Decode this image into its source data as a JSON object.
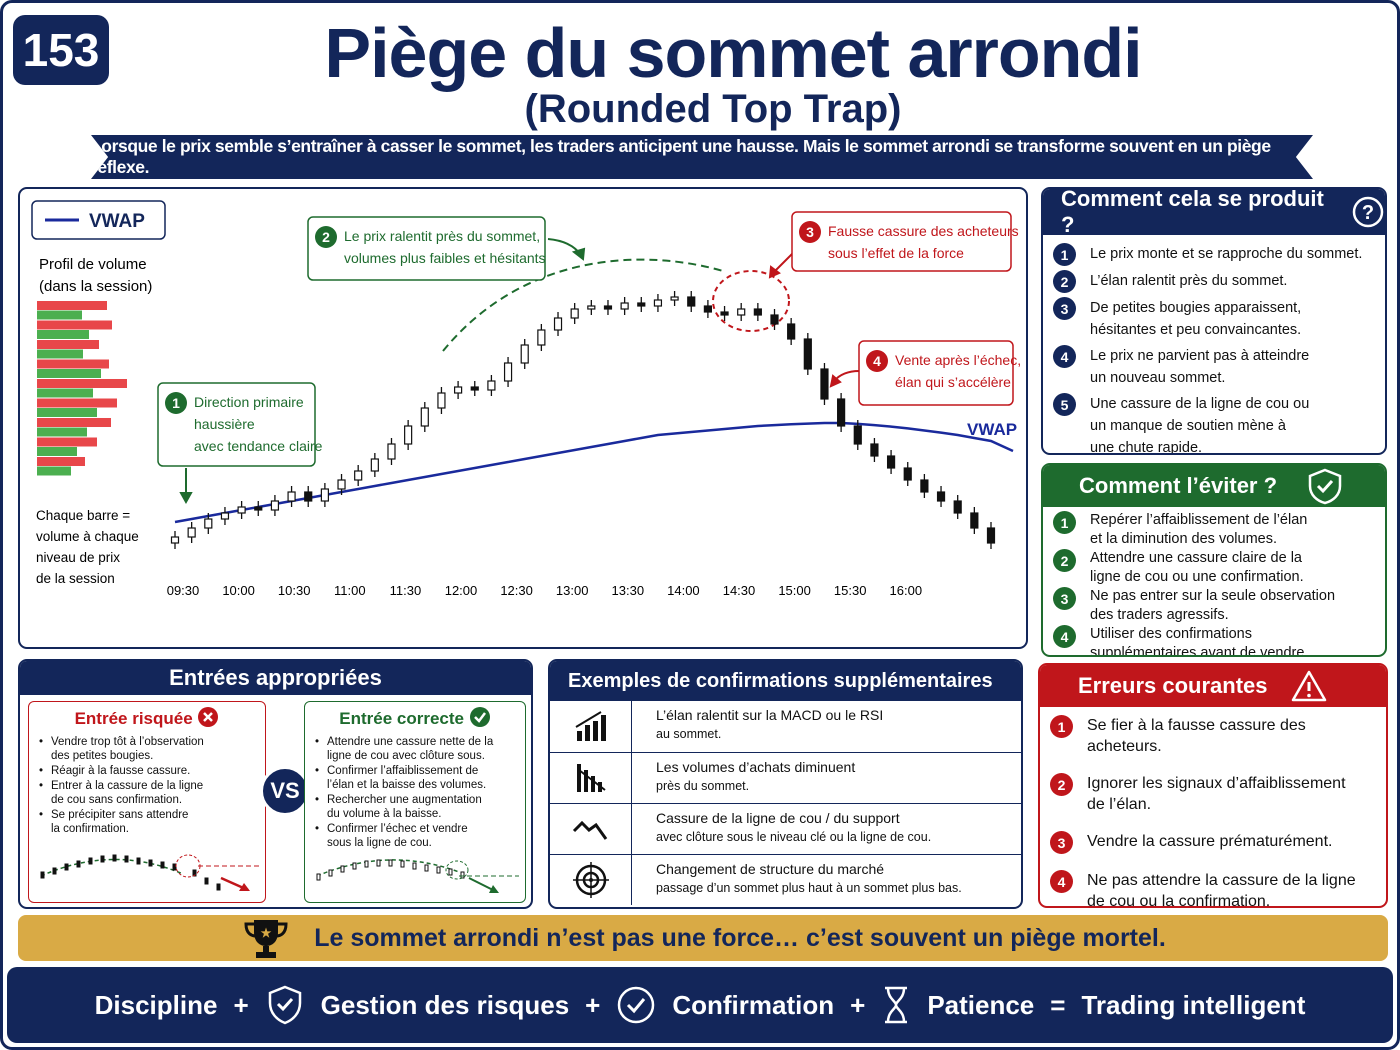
{
  "header": {
    "badge": 153,
    "title": "Piège du sommet arrondi",
    "subtitle": "(Rounded Top Trap)",
    "banner": "Lorsque le prix semble s’entraîner à casser le sommet, les traders anticipent une hausse. Mais le sommet arrondi se transforme souvent en un piège réflexe."
  },
  "chart_data": {
    "type": "candlestick",
    "legend": "VWAP",
    "vwap_label": "VWAP",
    "profile_title": [
      "Profil de volume",
      "(dans la session)"
    ],
    "profile_note": [
      "Chaque barre =",
      "volume à chaque",
      "niveau de prix",
      "de la session"
    ],
    "volume_profile": {
      "sell": [
        70,
        75,
        62,
        72,
        90,
        80,
        74,
        60,
        48
      ],
      "buy": [
        45,
        52,
        46,
        64,
        56,
        60,
        50,
        40,
        34
      ],
      "sell_color": "#e8474a",
      "buy_color": "#4caf50"
    },
    "categories": [
      "09:30",
      "10:00",
      "10:30",
      "11:00",
      "11:30",
      "12:00",
      "12:30",
      "13:00",
      "13:30",
      "14:00",
      "14:30",
      "15:00",
      "15:30",
      "16:00"
    ],
    "candles": [
      [
        10,
        14,
        8,
        12
      ],
      [
        12,
        17,
        10,
        15
      ],
      [
        15,
        20,
        13,
        18
      ],
      [
        18,
        22,
        16,
        20
      ],
      [
        20,
        24,
        18,
        22
      ],
      [
        22,
        24,
        19,
        21
      ],
      [
        21,
        26,
        19,
        24
      ],
      [
        24,
        29,
        22,
        27
      ],
      [
        27,
        29,
        22,
        24
      ],
      [
        24,
        30,
        22,
        28
      ],
      [
        28,
        33,
        26,
        31
      ],
      [
        31,
        36,
        29,
        34
      ],
      [
        34,
        40,
        32,
        38
      ],
      [
        38,
        45,
        36,
        43
      ],
      [
        43,
        51,
        41,
        49
      ],
      [
        49,
        57,
        47,
        55
      ],
      [
        55,
        62,
        53,
        60
      ],
      [
        60,
        64,
        58,
        62
      ],
      [
        62,
        64,
        59,
        61
      ],
      [
        61,
        66,
        59,
        64
      ],
      [
        64,
        72,
        62,
        70
      ],
      [
        70,
        78,
        68,
        76
      ],
      [
        76,
        83,
        74,
        81
      ],
      [
        81,
        87,
        79,
        85
      ],
      [
        85,
        90,
        83,
        88
      ],
      [
        88,
        91,
        86,
        89
      ],
      [
        89,
        91,
        86,
        88
      ],
      [
        88,
        92,
        86,
        90
      ],
      [
        90,
        92,
        87,
        89
      ],
      [
        89,
        93,
        87,
        91
      ],
      [
        91,
        94,
        89,
        92
      ],
      [
        92,
        94,
        87,
        89
      ],
      [
        89,
        91,
        85,
        87
      ],
      [
        87,
        89,
        84,
        86
      ],
      [
        86,
        90,
        84,
        88
      ],
      [
        88,
        90,
        84,
        86
      ],
      [
        86,
        88,
        81,
        83
      ],
      [
        83,
        85,
        76,
        78
      ],
      [
        78,
        80,
        66,
        68
      ],
      [
        68,
        70,
        56,
        58
      ],
      [
        58,
        60,
        47,
        49
      ],
      [
        49,
        51,
        41,
        43
      ],
      [
        43,
        45,
        37,
        39
      ],
      [
        39,
        41,
        33,
        35
      ],
      [
        35,
        37,
        29,
        31
      ],
      [
        31,
        33,
        25,
        27
      ],
      [
        27,
        29,
        22,
        24
      ],
      [
        24,
        26,
        18,
        20
      ],
      [
        20,
        22,
        13,
        15
      ],
      [
        15,
        17,
        8,
        10
      ]
    ],
    "vwap": [
      17,
      18,
      19,
      20,
      21,
      22,
      23,
      24,
      25,
      26,
      27,
      28,
      29,
      30,
      31,
      32,
      33,
      34,
      35,
      36,
      37,
      38,
      39,
      40,
      41,
      42,
      43,
      44,
      45,
      46,
      46.5,
      47,
      47.5,
      48,
      48.5,
      49,
      49.3,
      49.6,
      49.8,
      50,
      50,
      49.7,
      49.3,
      48.8,
      48.2,
      47.5,
      46.8,
      46,
      45,
      44
    ],
    "vwap_color": "#1a2a9c",
    "ylim": [
      0,
      100
    ],
    "annotations": [
      {
        "number": 1,
        "lines": [
          "Direction primaire",
          "haussière",
          "avec tendance claire"
        ],
        "color": "#1e6b2e"
      },
      {
        "number": 2,
        "lines": [
          "Le prix ralentit près du sommet,",
          "volumes plus faibles et hésitants"
        ],
        "color": "#1e6b2e"
      },
      {
        "number": 3,
        "lines": [
          "Fausse cassure des acheteurs",
          "sous l’effet de la force"
        ],
        "color": "#c0161b"
      },
      {
        "number": 4,
        "lines": [
          "Vente après l’échec,",
          "élan qui s’accélère"
        ],
        "color": "#c0161b"
      }
    ]
  },
  "how": {
    "title": "Comment cela se produit ?",
    "color": "#13265a",
    "items": [
      {
        "number": 1,
        "lines": [
          "Le prix monte et se rapproche du sommet."
        ]
      },
      {
        "number": 2,
        "lines": [
          "L’élan ralentit près du sommet."
        ]
      },
      {
        "number": 3,
        "lines": [
          "De petites bougies apparaissent,",
          "hésitantes et peu convaincantes."
        ]
      },
      {
        "number": 4,
        "lines": [
          "Le prix ne parvient pas à atteindre",
          "un nouveau sommet."
        ]
      },
      {
        "number": 5,
        "lines": [
          "Une cassure de la ligne de cou ou",
          "un manque de soutien mène à",
          "une chute rapide."
        ]
      }
    ]
  },
  "avoid": {
    "title": "Comment l’éviter ?",
    "color": "#1e6b2e",
    "items": [
      {
        "number": 1,
        "lines": [
          "Repérer l’affaiblissement de l’élan",
          "et la diminution des volumes."
        ]
      },
      {
        "number": 2,
        "lines": [
          "Attendre une cassure claire de la",
          "ligne de cou ou une confirmation."
        ]
      },
      {
        "number": 3,
        "lines": [
          "Ne pas entrer sur la seule observation",
          "des traders agressifs."
        ]
      },
      {
        "number": 4,
        "lines": [
          "Utiliser des confirmations",
          "supplémentaires avant de vendre."
        ]
      }
    ]
  },
  "entries": {
    "title": "Entrées appropriées",
    "vs": "VS",
    "risky": {
      "title": "Entrée risquée",
      "items": [
        [
          "Vendre trop tôt à l’observation",
          "des petites bougies."
        ],
        [
          "Réagir à la fausse cassure."
        ],
        [
          "Entrer à la cassure de la ligne",
          "de cou sans confirmation."
        ],
        [
          "Se précipiter sans attendre",
          "la confirmation."
        ]
      ]
    },
    "correct": {
      "title": "Entrée correcte",
      "items": [
        [
          "Attendre une cassure nette de la",
          "ligne de cou avec clôture sous."
        ],
        [
          "Confirmer l’affaiblissement de",
          "l’élan et la baisse des volumes."
        ],
        [
          "Rechercher une augmentation",
          "du volume à la baisse."
        ],
        [
          "Confirmer l’échec et vendre",
          "sous la ligne de cou."
        ]
      ]
    }
  },
  "examples": {
    "title": "Exemples de confirmations supplémentaires",
    "rows": [
      [
        "L’élan ralentit sur la MACD ou le RSI",
        "au sommet."
      ],
      [
        "Les volumes d’achats diminuent",
        "près du sommet."
      ],
      [
        "Cassure de la ligne de cou / du support",
        "avec clôture sous le niveau clé ou la ligne de cou."
      ],
      [
        "Changement de structure du marché",
        "passage d’un sommet plus haut à un sommet plus bas."
      ]
    ]
  },
  "errors": {
    "title": "Erreurs courantes",
    "color": "#c0161b",
    "items": [
      {
        "number": 1,
        "lines": [
          "Se fier à la fausse cassure des acheteurs."
        ]
      },
      {
        "number": 2,
        "lines": [
          "Ignorer les signaux d’affaiblissement",
          "de l’élan."
        ]
      },
      {
        "number": 3,
        "lines": [
          "Vendre la cassure prématurément."
        ]
      },
      {
        "number": 4,
        "lines": [
          "Ne pas attendre la cassure de la ligne",
          "de cou ou la confirmation."
        ]
      }
    ]
  },
  "motto": "Le sommet arrondi n’est pas une force… c’est souvent un piège mortel.",
  "footer": [
    "Discipline",
    "+",
    "Gestion des risques",
    "+",
    "Confirmation",
    "+",
    "Patience",
    "=",
    "Trading intelligent"
  ]
}
